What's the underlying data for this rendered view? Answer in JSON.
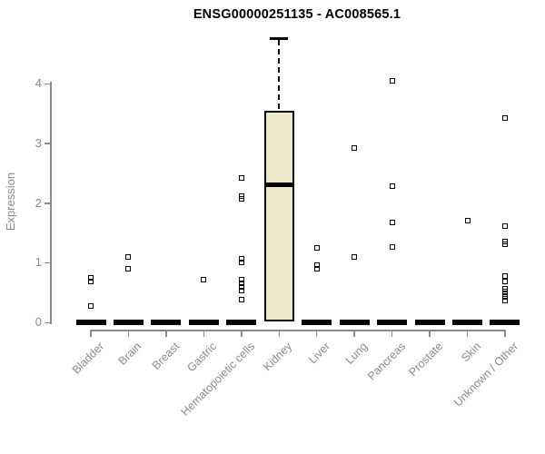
{
  "title": "ENSG00000251135 - AC008565.1",
  "colors": {
    "axis": "#8a8a8a",
    "label_text": "#8a8a8a",
    "title_text": "#000000",
    "box_fill": "#ece6cb",
    "box_stroke": "#000000",
    "point": "#000000",
    "background": "#ffffff"
  },
  "chart_data": {
    "type": "box",
    "title": "ENSG00000251135 - AC008565.1",
    "xlabel": "",
    "ylabel": "Expression",
    "ylim": [
      0,
      4.8
    ],
    "yticks": [
      0,
      1,
      2,
      3,
      4
    ],
    "grid": false,
    "legend": false,
    "categories": [
      "Bladder",
      "Brain",
      "Breast",
      "Gastric",
      "Hematopoietic cells",
      "Kidney",
      "Liver",
      "Lung",
      "Pancreas",
      "Prostate",
      "Skin",
      "Unknown / Other"
    ],
    "series": [
      {
        "category": "Bladder",
        "whisker_low": 0,
        "q1": 0,
        "median": 0,
        "q3": 0,
        "whisker_high": 0,
        "outliers": [
          0.75,
          0.68,
          0.28
        ]
      },
      {
        "category": "Brain",
        "whisker_low": 0,
        "q1": 0,
        "median": 0,
        "q3": 0,
        "whisker_high": 0,
        "outliers": [
          1.1,
          0.9
        ]
      },
      {
        "category": "Breast",
        "whisker_low": 0,
        "q1": 0,
        "median": 0,
        "q3": 0,
        "whisker_high": 0,
        "outliers": []
      },
      {
        "category": "Gastric",
        "whisker_low": 0,
        "q1": 0,
        "median": 0,
        "q3": 0,
        "whisker_high": 0,
        "outliers": [
          0.71
        ]
      },
      {
        "category": "Hematopoietic cells",
        "whisker_low": 0,
        "q1": 0,
        "median": 0,
        "q3": 0,
        "whisker_high": 0,
        "outliers": [
          2.42,
          2.12,
          2.07,
          1.06,
          1.0,
          0.71,
          0.65,
          0.59,
          0.53,
          0.38
        ]
      },
      {
        "category": "Kidney",
        "whisker_low": 0,
        "q1": 0.02,
        "median": 2.3,
        "q3": 3.55,
        "whisker_high": 4.75,
        "outliers": []
      },
      {
        "category": "Liver",
        "whisker_low": 0,
        "q1": 0,
        "median": 0,
        "q3": 0,
        "whisker_high": 0,
        "outliers": [
          1.24,
          0.96,
          0.9
        ]
      },
      {
        "category": "Lung",
        "whisker_low": 0,
        "q1": 0,
        "median": 0,
        "q3": 0,
        "whisker_high": 0,
        "outliers": [
          2.92,
          1.09
        ]
      },
      {
        "category": "Pancreas",
        "whisker_low": 0,
        "q1": 0,
        "median": 0,
        "q3": 0,
        "whisker_high": 0,
        "outliers": [
          4.05,
          2.28,
          1.67,
          1.26
        ]
      },
      {
        "category": "Prostate",
        "whisker_low": 0,
        "q1": 0,
        "median": 0,
        "q3": 0,
        "whisker_high": 0,
        "outliers": []
      },
      {
        "category": "Skin",
        "whisker_low": 0,
        "q1": 0,
        "median": 0,
        "q3": 0,
        "whisker_high": 0,
        "outliers": [
          1.7
        ]
      },
      {
        "category": "Unknown / Other",
        "whisker_low": 0,
        "q1": 0,
        "median": 0,
        "q3": 0,
        "whisker_high": 0,
        "outliers": [
          3.42,
          1.61,
          1.36,
          1.31,
          0.78,
          0.68,
          0.57,
          0.52,
          0.47,
          0.42,
          0.37
        ]
      }
    ]
  }
}
